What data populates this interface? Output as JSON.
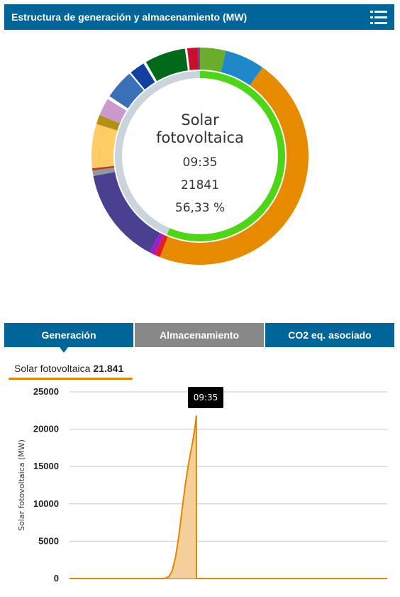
{
  "header": {
    "title": "Estructura de generación y almacenamiento (MW)",
    "menu_icon": "hamburger-menu-icon"
  },
  "donut": {
    "selected": {
      "name_line1": "Solar",
      "name_line2": "fotovoltaica",
      "time": "09:35",
      "value": "21841",
      "percent": "56,33 %"
    },
    "outer_ring": [
      {
        "value": 4.7,
        "color": "#6aac2c"
      },
      {
        "value": 7.2,
        "color": "#1e88c9"
      },
      {
        "value": 56.33,
        "color": "#e68a00"
      },
      {
        "value": 1.0,
        "color": "#e3201f"
      },
      {
        "value": 1.0,
        "color": "#a01ec8"
      },
      {
        "value": 17.5,
        "color": "#4a4090"
      },
      {
        "value": 1.0,
        "color": "#8e98a0"
      },
      {
        "value": 0.4,
        "color": "#c0392b"
      },
      {
        "value": 8.0,
        "color": "#ffcc66"
      },
      {
        "value": 1.7,
        "color": "#b39212"
      },
      {
        "value": 3.2,
        "color": "#cc99cc"
      },
      {
        "value": 0.6,
        "color": "#ffffff"
      },
      {
        "value": 5.4,
        "color": "#3a70b8"
      },
      {
        "value": 0.3,
        "color": "#ffffff"
      },
      {
        "value": 2.8,
        "color": "#1040a0"
      },
      {
        "value": 0.5,
        "color": "#ffffff"
      },
      {
        "value": 7.4,
        "color": "#006a1a"
      },
      {
        "value": 0.4,
        "color": "#ffffff"
      },
      {
        "value": 2.0,
        "color": "#c8102e"
      },
      {
        "value": 0.3,
        "color": "#7b3fa0"
      }
    ],
    "inner_ring": {
      "highlight_percent": 56.33,
      "highlight_color": "#4cd616",
      "rest_color": "#c9d4dc"
    }
  },
  "tabs": [
    {
      "label": "Generación",
      "active": true
    },
    {
      "label": "Almacenamiento",
      "active": false
    },
    {
      "label": "CO2 eq. asociado",
      "active": false
    }
  ],
  "legend": {
    "label": "Solar fotovoltaica",
    "value": "21.841",
    "color": "#e08700"
  },
  "tooltip": {
    "time": "09:35"
  },
  "chart_data": {
    "type": "area",
    "ylabel": "Solar fotovoltaica (MW)",
    "ylim": [
      0,
      25000
    ],
    "yticks": [
      "25000",
      "20000",
      "15000",
      "10000",
      "5000",
      "0"
    ],
    "grid": true,
    "color": "#e08700",
    "fill_color": "#f5cf9a",
    "series": [
      {
        "x": [
          0,
          4.5,
          7.0,
          7.25,
          7.5,
          7.75,
          8.0,
          8.25,
          8.5,
          8.75,
          9.0,
          9.25,
          9.33,
          9.4,
          9.5,
          9.58,
          9.59,
          9.6,
          24
        ],
        "values": [
          0,
          0,
          0,
          50,
          250,
          1000,
          2800,
          5600,
          9200,
          12600,
          15500,
          17800,
          18600,
          19400,
          20600,
          21841,
          0,
          0,
          0
        ]
      }
    ],
    "xlim": [
      0,
      24
    ]
  }
}
